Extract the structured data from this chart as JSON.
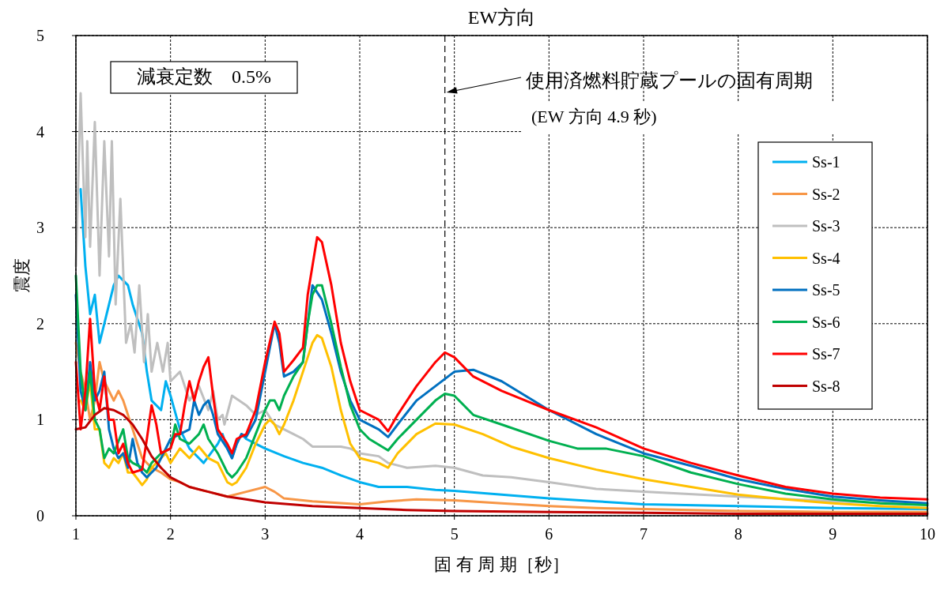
{
  "chart_data": {
    "type": "line",
    "title": "EW方向",
    "xlabel": "固 有 周 期［秒］",
    "ylabel": "震度",
    "xlim": [
      1,
      10
    ],
    "ylim": [
      0,
      5
    ],
    "xticks": [
      1,
      2,
      3,
      4,
      5,
      6,
      7,
      8,
      9,
      10
    ],
    "yticks": [
      0,
      1,
      2,
      3,
      4,
      5
    ],
    "grid": true,
    "legend": "right",
    "line_style": "solid",
    "marker": "none",
    "ref_lines": [
      {
        "axis": "x",
        "value": 4.9,
        "line_style": "dashed",
        "color": "#000000"
      }
    ],
    "annotations": [
      "減衰定数　0.5%",
      "使用済燃料貯蔵プールの固有周期",
      "(EW 方向 4.9 秒)"
    ],
    "series": [
      {
        "name": "Ss-1",
        "color": "#00b0f0",
        "x": [
          1.05,
          1.1,
          1.15,
          1.2,
          1.25,
          1.3,
          1.35,
          1.4,
          1.45,
          1.5,
          1.55,
          1.6,
          1.7,
          1.75,
          1.8,
          1.9,
          1.95,
          2.0,
          2.1,
          2.2,
          2.3,
          2.35,
          2.5,
          2.55,
          2.6,
          2.65,
          2.7,
          2.75,
          2.8,
          2.9,
          3.0,
          3.2,
          3.4,
          3.6,
          3.8,
          4.0,
          4.2,
          4.5,
          4.8,
          5.0,
          5.5,
          6.0,
          6.5,
          7.0,
          8.0,
          9.0,
          10.0
        ],
        "values": [
          3.4,
          2.6,
          2.1,
          2.3,
          1.8,
          2.0,
          2.2,
          2.4,
          2.5,
          2.45,
          2.4,
          2.2,
          1.9,
          1.5,
          1.2,
          1.1,
          1.4,
          1.25,
          0.9,
          0.7,
          0.6,
          0.55,
          0.75,
          0.85,
          0.7,
          0.6,
          0.75,
          0.85,
          0.8,
          0.75,
          0.7,
          0.62,
          0.55,
          0.5,
          0.42,
          0.35,
          0.3,
          0.3,
          0.27,
          0.26,
          0.22,
          0.18,
          0.15,
          0.12,
          0.1,
          0.08,
          0.07
        ]
      },
      {
        "name": "Ss-2",
        "color": "#f79646",
        "x": [
          1.0,
          1.05,
          1.1,
          1.15,
          1.2,
          1.25,
          1.3,
          1.4,
          1.45,
          1.5,
          1.6,
          1.7,
          1.8,
          1.9,
          2.0,
          2.1,
          2.2,
          2.4,
          2.6,
          2.8,
          3.0,
          3.1,
          3.2,
          3.5,
          4.0,
          4.3,
          4.6,
          5.0,
          5.5,
          6.0,
          6.5,
          7.0,
          8.0,
          9.0,
          10.0
        ],
        "values": [
          1.8,
          1.5,
          1.3,
          1.0,
          1.2,
          1.6,
          1.4,
          1.2,
          1.3,
          1.2,
          0.9,
          0.6,
          0.5,
          0.45,
          0.38,
          0.35,
          0.3,
          0.25,
          0.2,
          0.25,
          0.3,
          0.25,
          0.18,
          0.15,
          0.12,
          0.15,
          0.17,
          0.16,
          0.13,
          0.1,
          0.08,
          0.07,
          0.05,
          0.04,
          0.04
        ]
      },
      {
        "name": "Ss-3",
        "color": "#bfbfbf",
        "x": [
          1.0,
          1.05,
          1.1,
          1.12,
          1.15,
          1.2,
          1.25,
          1.3,
          1.35,
          1.38,
          1.42,
          1.47,
          1.53,
          1.58,
          1.62,
          1.67,
          1.72,
          1.76,
          1.8,
          1.86,
          1.92,
          1.97,
          2.0,
          2.1,
          2.2,
          2.3,
          2.4,
          2.45,
          2.5,
          2.55,
          2.57,
          2.65,
          2.8,
          2.9,
          3.0,
          3.1,
          3.2,
          3.3,
          3.4,
          3.5,
          3.8,
          3.9,
          4.0,
          4.2,
          4.3,
          4.5,
          4.8,
          5.0,
          5.3,
          5.6,
          6.0,
          6.5,
          7.0,
          8.0,
          9.0,
          10.0
        ],
        "values": [
          2.6,
          4.4,
          2.9,
          3.9,
          2.8,
          4.1,
          2.5,
          3.9,
          2.7,
          3.9,
          2.2,
          3.3,
          1.8,
          2.0,
          1.7,
          2.4,
          1.6,
          2.1,
          1.5,
          1.8,
          1.5,
          1.8,
          1.4,
          1.5,
          1.2,
          1.35,
          1.1,
          1.3,
          1.0,
          1.05,
          0.95,
          1.25,
          1.15,
          1.05,
          1.1,
          0.95,
          0.9,
          0.85,
          0.8,
          0.72,
          0.72,
          0.7,
          0.65,
          0.62,
          0.55,
          0.5,
          0.52,
          0.5,
          0.42,
          0.4,
          0.35,
          0.28,
          0.25,
          0.2,
          0.15,
          0.12
        ]
      },
      {
        "name": "Ss-4",
        "color": "#ffc000",
        "x": [
          1.05,
          1.1,
          1.15,
          1.2,
          1.25,
          1.3,
          1.35,
          1.4,
          1.45,
          1.5,
          1.55,
          1.6,
          1.7,
          1.75,
          1.8,
          1.9,
          1.95,
          2.0,
          2.1,
          2.2,
          2.3,
          2.4,
          2.5,
          2.6,
          2.65,
          2.7,
          2.8,
          2.9,
          3.0,
          3.05,
          3.1,
          3.15,
          3.2,
          3.3,
          3.4,
          3.5,
          3.55,
          3.6,
          3.7,
          3.8,
          3.9,
          4.0,
          4.2,
          4.3,
          4.4,
          4.6,
          4.8,
          5.0,
          5.3,
          5.6,
          6.0,
          6.5,
          7.0,
          7.5,
          8.0,
          8.5,
          9.0,
          9.5,
          10.0
        ],
        "values": [
          1.2,
          1.1,
          1.4,
          0.9,
          0.9,
          0.55,
          0.5,
          0.6,
          0.55,
          0.65,
          0.45,
          0.45,
          0.32,
          0.38,
          0.5,
          0.6,
          0.65,
          0.55,
          0.7,
          0.6,
          0.72,
          0.6,
          0.55,
          0.35,
          0.32,
          0.35,
          0.5,
          0.75,
          0.95,
          1.0,
          0.95,
          0.85,
          0.95,
          1.2,
          1.5,
          1.8,
          1.88,
          1.85,
          1.55,
          1.1,
          0.75,
          0.6,
          0.55,
          0.5,
          0.65,
          0.85,
          0.96,
          0.95,
          0.85,
          0.72,
          0.6,
          0.48,
          0.38,
          0.3,
          0.22,
          0.17,
          0.13,
          0.1,
          0.08
        ]
      },
      {
        "name": "Ss-5",
        "color": "#0070c0",
        "x": [
          1.0,
          1.05,
          1.1,
          1.15,
          1.2,
          1.25,
          1.3,
          1.35,
          1.4,
          1.45,
          1.5,
          1.55,
          1.6,
          1.65,
          1.7,
          1.75,
          1.8,
          1.85,
          1.9,
          2.0,
          2.1,
          2.2,
          2.25,
          2.3,
          2.35,
          2.4,
          2.45,
          2.5,
          2.6,
          2.65,
          2.7,
          2.75,
          2.8,
          2.9,
          3.0,
          3.1,
          3.15,
          3.2,
          3.3,
          3.4,
          3.45,
          3.5,
          3.6,
          3.7,
          3.8,
          3.9,
          4.0,
          4.2,
          4.3,
          4.4,
          4.6,
          4.8,
          5.0,
          5.2,
          5.5,
          6.0,
          6.5,
          7.0,
          7.5,
          8.0,
          8.5,
          9.0,
          9.5,
          10.0
        ],
        "values": [
          2.3,
          1.3,
          1.1,
          1.6,
          1.2,
          1.3,
          1.5,
          0.9,
          0.7,
          0.6,
          0.65,
          0.5,
          0.8,
          0.55,
          0.45,
          0.4,
          0.45,
          0.5,
          0.6,
          0.8,
          0.85,
          0.9,
          1.2,
          1.05,
          1.15,
          1.2,
          1.05,
          0.85,
          0.7,
          0.6,
          0.75,
          0.85,
          0.82,
          1.0,
          1.5,
          2.0,
          1.8,
          1.45,
          1.5,
          1.6,
          2.0,
          2.4,
          2.25,
          1.9,
          1.5,
          1.2,
          1.0,
          0.9,
          0.82,
          0.95,
          1.2,
          1.35,
          1.5,
          1.52,
          1.4,
          1.1,
          0.85,
          0.65,
          0.52,
          0.38,
          0.28,
          0.2,
          0.16,
          0.13
        ]
      },
      {
        "name": "Ss-6",
        "color": "#00b050",
        "x": [
          1.0,
          1.05,
          1.1,
          1.15,
          1.2,
          1.25,
          1.3,
          1.35,
          1.4,
          1.5,
          1.55,
          1.6,
          1.7,
          1.75,
          1.8,
          1.9,
          2.0,
          2.05,
          2.1,
          2.2,
          2.3,
          2.35,
          2.4,
          2.5,
          2.6,
          2.65,
          2.7,
          2.8,
          2.9,
          3.0,
          3.05,
          3.1,
          3.15,
          3.2,
          3.3,
          3.4,
          3.45,
          3.5,
          3.55,
          3.6,
          3.7,
          3.8,
          3.9,
          4.0,
          4.1,
          4.3,
          4.4,
          4.6,
          4.8,
          4.9,
          5.0,
          5.2,
          5.5,
          6.0,
          6.3,
          6.6,
          7.0,
          7.5,
          8.0,
          8.5,
          9.0,
          9.5,
          10.0
        ],
        "values": [
          2.5,
          1.5,
          1.1,
          1.5,
          1.0,
          0.9,
          0.6,
          0.7,
          0.65,
          0.9,
          0.6,
          0.55,
          0.5,
          0.45,
          0.55,
          0.65,
          0.7,
          0.95,
          0.8,
          0.75,
          0.85,
          0.95,
          0.8,
          0.65,
          0.45,
          0.4,
          0.45,
          0.6,
          0.85,
          1.1,
          1.2,
          1.2,
          1.1,
          1.25,
          1.45,
          1.6,
          2.0,
          2.3,
          2.4,
          2.4,
          2.0,
          1.55,
          1.15,
          0.9,
          0.8,
          0.68,
          0.8,
          1.0,
          1.2,
          1.27,
          1.25,
          1.05,
          0.95,
          0.78,
          0.7,
          0.7,
          0.62,
          0.45,
          0.33,
          0.23,
          0.17,
          0.13,
          0.11
        ]
      },
      {
        "name": "Ss-7",
        "color": "#ff0000",
        "x": [
          1.0,
          1.05,
          1.1,
          1.15,
          1.2,
          1.25,
          1.3,
          1.35,
          1.4,
          1.45,
          1.5,
          1.55,
          1.6,
          1.7,
          1.75,
          1.8,
          1.85,
          1.9,
          2.0,
          2.05,
          2.1,
          2.15,
          2.2,
          2.25,
          2.3,
          2.35,
          2.4,
          2.45,
          2.5,
          2.6,
          2.65,
          2.7,
          2.8,
          2.9,
          3.0,
          3.1,
          3.15,
          3.2,
          3.3,
          3.4,
          3.45,
          3.5,
          3.55,
          3.6,
          3.7,
          3.8,
          3.9,
          4.0,
          4.2,
          4.3,
          4.4,
          4.6,
          4.8,
          4.9,
          5.0,
          5.2,
          5.5,
          6.0,
          6.5,
          7.0,
          7.5,
          8.0,
          8.5,
          9.0,
          9.5,
          10.0
        ],
        "values": [
          1.6,
          0.9,
          1.3,
          2.05,
          1.3,
          1.1,
          1.45,
          1.0,
          1.0,
          0.65,
          0.75,
          0.55,
          0.45,
          0.48,
          0.8,
          1.15,
          0.95,
          0.65,
          0.7,
          0.85,
          0.85,
          1.15,
          1.4,
          1.2,
          1.4,
          1.55,
          1.65,
          1.25,
          0.9,
          0.75,
          0.65,
          0.8,
          0.85,
          1.1,
          1.6,
          2.02,
          1.9,
          1.5,
          1.62,
          1.75,
          2.3,
          2.6,
          2.9,
          2.85,
          2.4,
          1.8,
          1.4,
          1.1,
          1.0,
          0.88,
          1.05,
          1.35,
          1.6,
          1.7,
          1.65,
          1.45,
          1.3,
          1.1,
          0.92,
          0.7,
          0.55,
          0.42,
          0.3,
          0.23,
          0.19,
          0.17
        ]
      },
      {
        "name": "Ss-8",
        "color": "#c00000",
        "x": [
          1.0,
          1.1,
          1.2,
          1.3,
          1.4,
          1.5,
          1.6,
          1.7,
          1.8,
          1.9,
          2.0,
          2.2,
          2.4,
          2.6,
          2.8,
          3.0,
          3.5,
          4.0,
          4.5,
          5.0,
          6.0,
          7.0,
          8.0,
          10.0
        ],
        "values": [
          0.9,
          0.92,
          1.05,
          1.12,
          1.1,
          1.05,
          0.95,
          0.8,
          0.62,
          0.5,
          0.4,
          0.3,
          0.25,
          0.2,
          0.17,
          0.14,
          0.1,
          0.08,
          0.06,
          0.05,
          0.04,
          0.03,
          0.02,
          0.02
        ]
      }
    ]
  }
}
